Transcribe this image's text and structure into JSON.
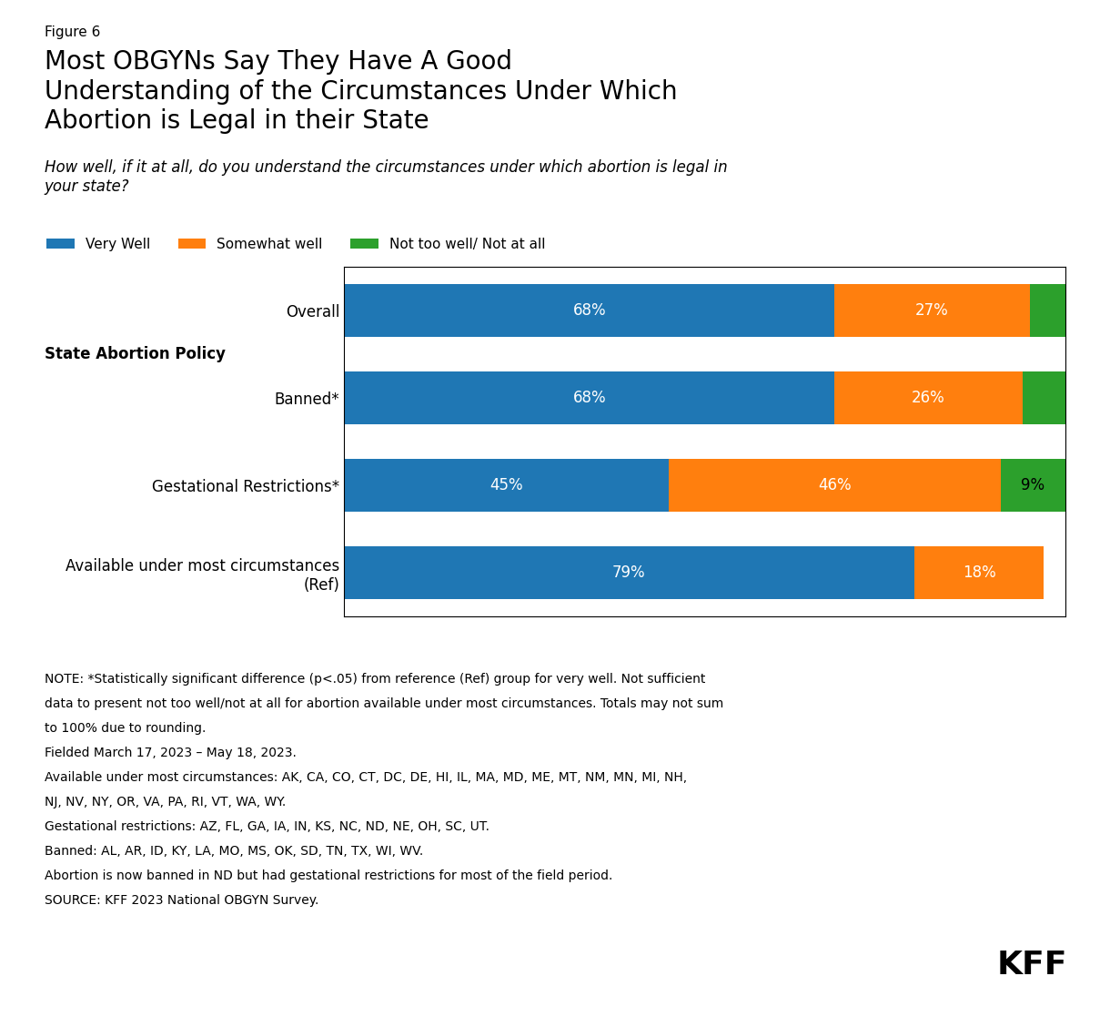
{
  "chart_data": {
    "type": "bar",
    "orientation": "horizontal",
    "stacked": true,
    "data_labels": true,
    "tick_labels": "y",
    "figure_label": "Figure 6",
    "title": "Most OBGYNs Say They Have A Good\nUnderstanding of the Circumstances Under Which\nAbortion is Legal in their State",
    "subtitle": "How well, if it at all, do you understand the circumstances under which abortion is legal in\nyour state?",
    "section_label": "State Abortion Policy",
    "categories": [
      "Overall",
      "Banned*",
      "Gestational Restrictions*",
      "Available under most circumstances\n(Ref)"
    ],
    "series": [
      {
        "name": "Very Well",
        "values": [
          68,
          68,
          45,
          79
        ],
        "value_labels": [
          "68%",
          "68%",
          "45%",
          "79%"
        ]
      },
      {
        "name": "Somewhat well",
        "values": [
          27,
          26,
          46,
          18
        ],
        "value_labels": [
          "27%",
          "26%",
          "46%",
          "18%"
        ]
      },
      {
        "name": "Not too well/ Not at all",
        "values": [
          5,
          6,
          9,
          0
        ],
        "value_labels": [
          null,
          null,
          "9%",
          null
        ]
      }
    ],
    "xlim": [
      0,
      100
    ],
    "legend": "lower left",
    "grid": false,
    "notes": [
      "NOTE: *Statistically significant difference (p<.05) from reference (Ref) group for very well. Not sufficient",
      "data to present not too well/not at all for abortion available under most circumstances. Totals may not sum",
      "to 100% due to rounding.",
      "Fielded March 17, 2023 – May 18, 2023.",
      "Available under most circumstances: AK, CA, CO, CT, DC, DE, HI, IL, MA, MD, ME, MT, NM, MN, MI, NH,",
      "NJ, NV, NY, OR, VA, PA, RI, VT, WA, WY.",
      "Gestational restrictions: AZ, FL, GA, IA, IN, KS, NC, ND, NE, OH, SC, UT.",
      "Banned: AL, AR, ID, KY, LA, MO, MS, OK, SD, TN, TX, WI, WV.",
      "Abortion is now banned in ND but had gestational restrictions for most of the field period.",
      "SOURCE: KFF 2023 National OBGYN Survey."
    ],
    "logo": "KFF"
  }
}
